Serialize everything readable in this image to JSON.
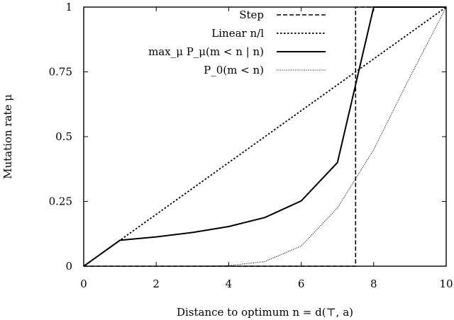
{
  "chart_data": {
    "type": "line",
    "title": "",
    "xlabel": "Distance to optimum n = d(⊤, a)",
    "ylabel": "Mutation rate μ",
    "xlim": [
      0,
      10
    ],
    "ylim": [
      0,
      1
    ],
    "xticks": [
      0,
      2,
      4,
      6,
      8,
      10
    ],
    "xtick_labels": [
      "0",
      "2",
      "4",
      "6",
      "8",
      "10"
    ],
    "yticks": [
      0,
      0.25,
      0.5,
      0.75,
      1
    ],
    "ytick_labels": [
      "0",
      "0.25",
      "0.5",
      "0.75",
      "1"
    ],
    "legend_position": "top-right",
    "grid": false,
    "series": [
      {
        "name": "Step",
        "style": "dashed",
        "points": [
          [
            0,
            0
          ],
          [
            7.5,
            0
          ],
          [
            7.5,
            1
          ],
          [
            10,
            1
          ]
        ]
      },
      {
        "name": "Linear n/l",
        "style": "dotted",
        "points": [
          [
            0,
            0
          ],
          [
            1,
            0.1
          ],
          [
            2,
            0.2
          ],
          [
            3,
            0.3
          ],
          [
            4,
            0.4
          ],
          [
            5,
            0.5
          ],
          [
            6,
            0.6
          ],
          [
            7,
            0.7
          ],
          [
            8,
            0.8
          ],
          [
            9,
            0.9
          ],
          [
            10,
            1.0
          ]
        ]
      },
      {
        "name": "max_μ P_μ(m < n | n)",
        "style": "solid",
        "points": [
          [
            0,
            0
          ],
          [
            1,
            0.1
          ],
          [
            2,
            0.113
          ],
          [
            3,
            0.13
          ],
          [
            4,
            0.153
          ],
          [
            5,
            0.188
          ],
          [
            6,
            0.252
          ],
          [
            7,
            0.4
          ],
          [
            8,
            1.0
          ],
          [
            9,
            1.0
          ],
          [
            10,
            1.0
          ]
        ]
      },
      {
        "name": "P_0(m < n)",
        "style": "fine-dotted",
        "points": [
          [
            0,
            0
          ],
          [
            1,
            0
          ],
          [
            2,
            0
          ],
          [
            3,
            0
          ],
          [
            4,
            0.002
          ],
          [
            5,
            0.018
          ],
          [
            6,
            0.078
          ],
          [
            7,
            0.225
          ],
          [
            8,
            0.45
          ],
          [
            9,
            0.73
          ],
          [
            10,
            1.0
          ]
        ]
      }
    ]
  }
}
